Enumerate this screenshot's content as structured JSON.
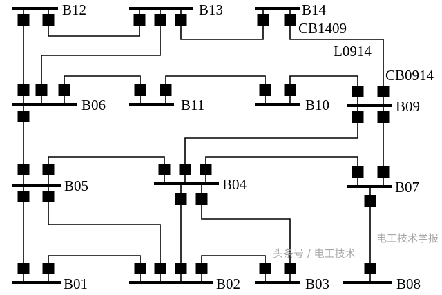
{
  "diagram": {
    "buses": {
      "B01": "B01",
      "B02": "B02",
      "B03": "B03",
      "B04": "B04",
      "B05": "B05",
      "B06": "B06",
      "B07": "B07",
      "B08": "B08",
      "B09": "B09",
      "B10": "B10",
      "B11": "B11",
      "B12": "B12",
      "B13": "B13",
      "B14": "B14"
    },
    "annotations": {
      "cb1409": "CB1409",
      "l0914": "L0914",
      "cb0914": "CB0914"
    },
    "line_color": "#000000",
    "breaker_color": "#000000"
  },
  "watermark": {
    "line1": "电工技术学报",
    "line2": "头条号 / 电工技术"
  }
}
